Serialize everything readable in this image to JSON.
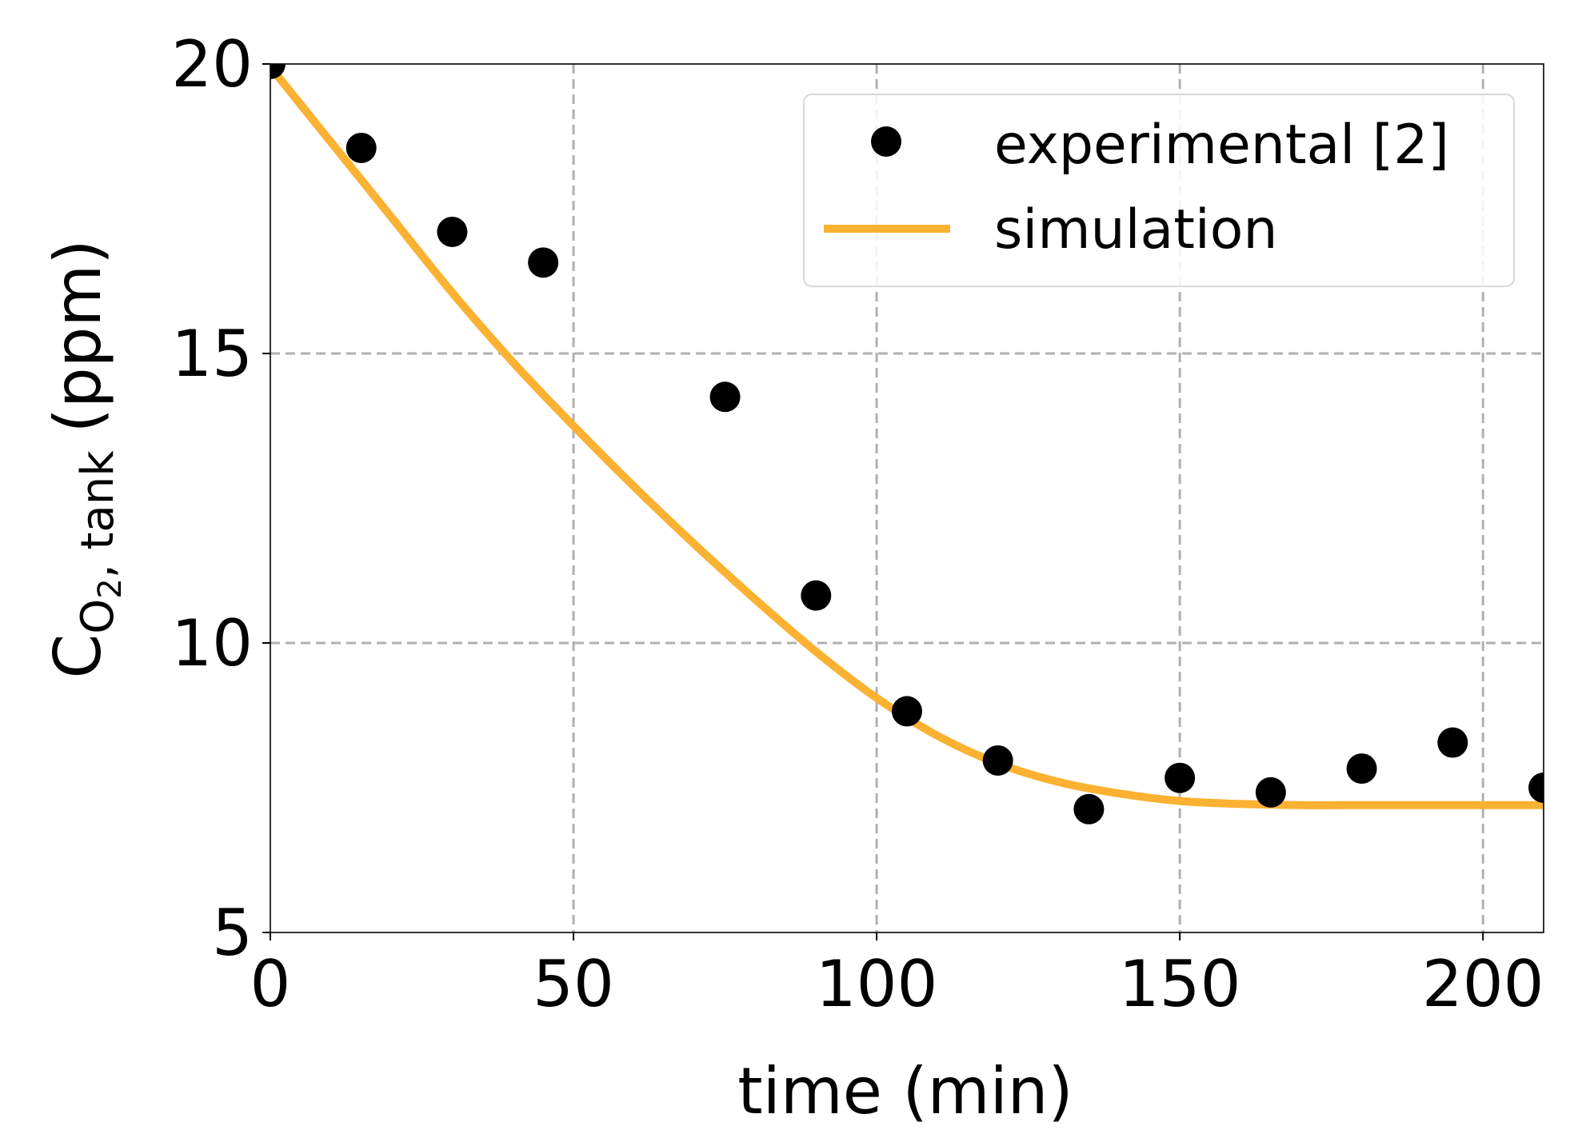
{
  "colors": {
    "experimental": "#000000",
    "simulation": "#FBB131",
    "grid": "#b0b0b0",
    "axis": "#000000",
    "legend_border": "#d8d8d8"
  },
  "chart_data": {
    "type": "line",
    "xlabel": "time (min)",
    "ylabel": {
      "main": "C",
      "sub1": "O",
      "sub2": "2",
      "sub3": ", tank",
      "unit": "(ppm)"
    },
    "xlim": [
      0,
      210
    ],
    "ylim": [
      5,
      20
    ],
    "xticks": [
      0,
      50,
      100,
      150,
      200
    ],
    "xtick_labels": [
      "0",
      "50",
      "100",
      "150",
      "200"
    ],
    "yticks": [
      5,
      10,
      15,
      20
    ],
    "ytick_labels": [
      "5",
      "10",
      "15",
      "20"
    ],
    "grid": true,
    "grid_style": "dashed",
    "legend_position": "upper-right",
    "series": [
      {
        "name": "experimental [2]",
        "kind": "scatter",
        "x": [
          0,
          15,
          30,
          45,
          75,
          90,
          105,
          120,
          135,
          150,
          165,
          180,
          195,
          210
        ],
        "y": [
          20.0,
          18.55,
          17.1,
          16.57,
          14.25,
          10.82,
          8.82,
          7.97,
          7.13,
          7.67,
          7.42,
          7.83,
          8.28,
          7.5
        ]
      },
      {
        "name": "simulation",
        "kind": "line",
        "x": [
          0,
          10,
          20,
          30,
          40,
          50,
          60,
          70,
          80,
          90,
          100,
          110,
          120,
          130,
          140,
          150,
          160,
          170,
          180,
          190,
          200,
          210
        ],
        "y": [
          19.95,
          18.65,
          17.35,
          16.05,
          14.85,
          13.75,
          12.7,
          11.7,
          10.75,
          9.85,
          9.05,
          8.4,
          7.92,
          7.6,
          7.4,
          7.27,
          7.22,
          7.2,
          7.2,
          7.2,
          7.2,
          7.2
        ]
      }
    ]
  }
}
